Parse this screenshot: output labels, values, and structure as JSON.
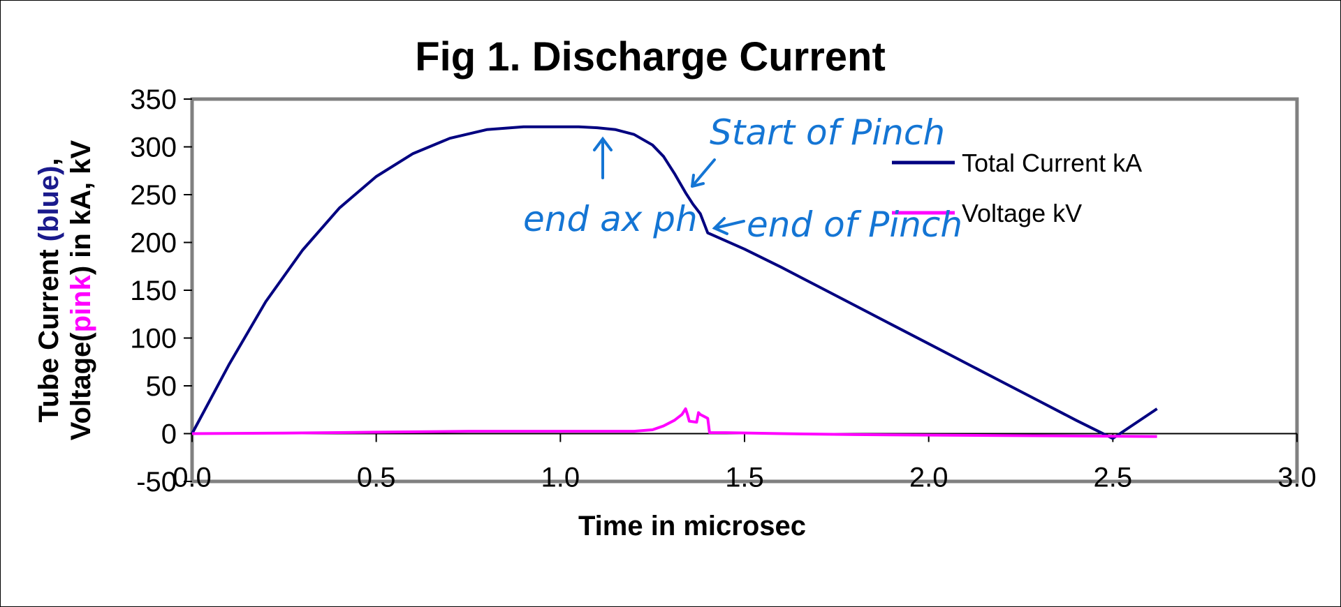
{
  "chart_data": {
    "type": "line",
    "title": "Fig 1. Discharge Current",
    "xlabel": "Time in microsec",
    "ylabel": {
      "line1": [
        {
          "text": "Tube Current ",
          "color": "#000000"
        },
        {
          "text": "(blue)",
          "color": "#1a1a8c"
        },
        {
          "text": ",",
          "color": "#000000"
        }
      ],
      "line2": [
        {
          "text": "Voltage(",
          "color": "#000000"
        },
        {
          "text": "pink",
          "color": "#ff00ff"
        },
        {
          "text": ") in kA, kV",
          "color": "#000000"
        }
      ]
    },
    "xlim": [
      0,
      3
    ],
    "ylim": [
      -50,
      350
    ],
    "x_ticks": [
      0,
      0.5,
      1.0,
      1.5,
      2.0,
      2.5,
      3.0
    ],
    "x_tick_labels": [
      "0.0",
      "0.5",
      "1.0",
      "1.5",
      "2.0",
      "2.5",
      "3.0"
    ],
    "y_ticks": [
      -50,
      0,
      50,
      100,
      150,
      200,
      250,
      300,
      350
    ],
    "y_tick_labels": [
      "-50",
      "0",
      "50",
      "100",
      "150",
      "200",
      "250",
      "300",
      "350"
    ],
    "grid": false,
    "legend_position": "right",
    "series": [
      {
        "name": "Total Current kA",
        "color": "#000080",
        "x": [
          0,
          0.1,
          0.2,
          0.3,
          0.4,
          0.5,
          0.6,
          0.7,
          0.8,
          0.9,
          1.0,
          1.05,
          1.1,
          1.15,
          1.2,
          1.25,
          1.28,
          1.31,
          1.34,
          1.36,
          1.38,
          1.4,
          1.5,
          1.6,
          1.7,
          1.8,
          1.9,
          2.0,
          2.1,
          2.2,
          2.3,
          2.4,
          2.5,
          2.62
        ],
        "y": [
          0,
          72,
          138,
          192,
          236,
          269,
          293,
          309,
          318,
          321,
          321,
          321,
          320,
          318,
          313,
          302,
          290,
          272,
          252,
          240,
          230,
          210,
          193,
          174,
          154,
          134,
          114,
          94,
          74,
          54,
          34,
          14,
          -5,
          26
        ]
      },
      {
        "name": "Voltage kV",
        "color": "#ff00ff",
        "x": [
          0,
          0.25,
          0.5,
          0.75,
          1.0,
          1.1,
          1.2,
          1.25,
          1.28,
          1.31,
          1.33,
          1.34,
          1.345,
          1.35,
          1.37,
          1.375,
          1.38,
          1.39,
          1.4,
          1.405,
          1.45,
          1.6,
          1.8,
          2.0,
          2.2,
          2.4,
          2.62
        ],
        "y": [
          0,
          0.5,
          1.5,
          2.5,
          2.5,
          2.5,
          2.5,
          4,
          8,
          14,
          20,
          26,
          20,
          13,
          12,
          22,
          20,
          18,
          16,
          1,
          1,
          0,
          -1,
          -1.5,
          -2,
          -2.5,
          -3
        ]
      }
    ],
    "annotations": [
      {
        "text": "Start of Pinch",
        "color": "#1475d4"
      },
      {
        "text": "end ax ph",
        "color": "#1475d4"
      },
      {
        "text": "end of Pinch",
        "color": "#1475d4"
      }
    ]
  }
}
